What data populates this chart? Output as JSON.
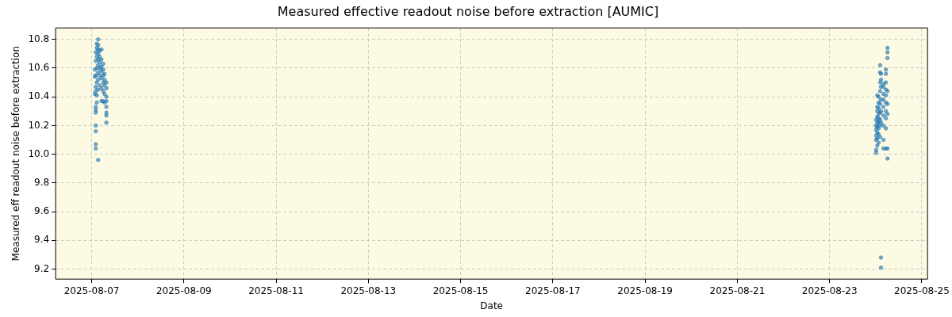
{
  "chart_data": {
    "type": "scatter",
    "title": "Measured effective readout noise before extraction [AUMIC]",
    "xlabel": "Date",
    "ylabel": "Measured eff readout noise before extraction",
    "x": [
      "2025-08-07T01:40",
      "2025-08-07T01:40",
      "2025-08-07T01:40",
      "2025-08-07T02:07",
      "2025-08-07T02:07",
      "2025-08-07T02:07",
      "2025-08-07T02:07",
      "2025-08-07T02:07",
      "2025-08-07T02:07",
      "2025-08-07T02:07",
      "2025-08-07T02:07",
      "2025-08-07T02:07",
      "2025-08-07T02:07",
      "2025-08-07T02:07",
      "2025-08-07T02:07",
      "2025-08-07T02:40",
      "2025-08-07T02:40",
      "2025-08-07T02:40",
      "2025-08-07T02:40",
      "2025-08-07T02:40",
      "2025-08-07T02:40",
      "2025-08-07T02:40",
      "2025-08-07T03:24",
      "2025-08-07T03:24",
      "2025-08-07T03:24",
      "2025-08-07T03:24",
      "2025-08-07T03:24",
      "2025-08-07T03:24",
      "2025-08-07T03:24",
      "2025-08-07T03:24",
      "2025-08-07T03:24",
      "2025-08-07T03:24",
      "2025-08-07T04:10",
      "2025-08-07T04:10",
      "2025-08-07T04:10",
      "2025-08-07T04:10",
      "2025-08-07T04:10",
      "2025-08-07T04:10",
      "2025-08-07T05:06",
      "2025-08-07T05:06",
      "2025-08-07T05:06",
      "2025-08-07T05:06",
      "2025-08-07T05:06",
      "2025-08-07T05:06",
      "2025-08-07T05:06",
      "2025-08-07T06:00",
      "2025-08-07T06:00",
      "2025-08-07T06:00",
      "2025-08-07T06:00",
      "2025-08-07T06:00",
      "2025-08-07T06:00",
      "2025-08-07T06:40",
      "2025-08-07T06:40",
      "2025-08-07T06:40",
      "2025-08-07T06:40",
      "2025-08-07T06:40",
      "2025-08-07T07:39",
      "2025-08-07T07:39",
      "2025-08-07T07:39",
      "2025-08-07T07:39",
      "2025-08-07T07:39",
      "2025-08-07T07:39",
      "2025-08-07T07:39",
      "2025-08-07T07:39",
      "2025-08-24T00:15",
      "2025-08-24T00:15",
      "2025-08-24T00:15",
      "2025-08-24T00:15",
      "2025-08-24T00:15",
      "2025-08-24T00:15",
      "2025-08-24T00:15",
      "2025-08-24T00:50",
      "2025-08-24T00:50",
      "2025-08-24T00:50",
      "2025-08-24T00:50",
      "2025-08-24T00:50",
      "2025-08-24T00:50",
      "2025-08-24T00:50",
      "2025-08-24T00:50",
      "2025-08-24T00:50",
      "2025-08-24T01:31",
      "2025-08-24T01:31",
      "2025-08-24T01:31",
      "2025-08-24T01:31",
      "2025-08-24T01:31",
      "2025-08-24T01:31",
      "2025-08-24T01:31",
      "2025-08-24T01:31",
      "2025-08-24T01:31",
      "2025-08-24T02:20",
      "2025-08-24T02:20",
      "2025-08-24T02:20",
      "2025-08-24T02:20",
      "2025-08-24T02:20",
      "2025-08-24T02:20",
      "2025-08-24T02:20",
      "2025-08-24T02:20",
      "2025-08-24T02:20",
      "2025-08-24T02:46",
      "2025-08-24T02:46",
      "2025-08-24T02:46",
      "2025-08-24T02:46",
      "2025-08-24T02:46",
      "2025-08-24T02:46",
      "2025-08-24T02:46",
      "2025-08-24T02:46",
      "2025-08-24T04:02",
      "2025-08-24T04:02",
      "2025-08-24T04:02",
      "2025-08-24T04:02",
      "2025-08-24T04:02",
      "2025-08-24T04:02",
      "2025-08-24T04:02",
      "2025-08-24T04:02",
      "2025-08-24T04:02",
      "2025-08-24T05:18",
      "2025-08-24T05:18",
      "2025-08-24T05:18",
      "2025-08-24T05:18",
      "2025-08-24T05:18",
      "2025-08-24T05:18",
      "2025-08-24T05:18",
      "2025-08-24T05:18",
      "2025-08-24T05:18",
      "2025-08-24T05:18",
      "2025-08-24T06:09",
      "2025-08-24T06:09",
      "2025-08-24T06:09",
      "2025-08-24T06:09",
      "2025-08-24T06:09",
      "2025-08-24T06:09",
      "2025-08-24T06:09",
      "2025-08-24T06:09"
    ],
    "values": [
      10.54,
      10.59,
      10.42,
      10.04,
      10.07,
      10.16,
      10.2,
      10.29,
      10.31,
      10.33,
      10.44,
      10.47,
      10.55,
      10.65,
      10.71,
      10.36,
      10.41,
      10.5,
      10.6,
      10.68,
      10.74,
      10.77,
      9.96,
      10.45,
      10.52,
      10.57,
      10.62,
      10.66,
      10.7,
      10.73,
      10.76,
      10.8,
      10.48,
      10.55,
      10.6,
      10.64,
      10.68,
      10.72,
      10.37,
      10.46,
      10.53,
      10.58,
      10.61,
      10.66,
      10.73,
      10.37,
      10.44,
      10.5,
      10.55,
      10.59,
      10.63,
      10.36,
      10.42,
      10.48,
      10.52,
      10.56,
      10.22,
      10.27,
      10.29,
      10.33,
      10.37,
      10.4,
      10.46,
      10.5,
      10.01,
      10.03,
      10.1,
      10.13,
      10.17,
      10.2,
      10.24,
      10.06,
      10.11,
      10.15,
      10.19,
      10.22,
      10.26,
      10.3,
      10.33,
      10.41,
      10.08,
      10.14,
      10.18,
      10.22,
      10.25,
      10.28,
      10.32,
      10.36,
      10.4,
      10.12,
      10.2,
      10.24,
      10.29,
      10.35,
      10.44,
      10.5,
      10.57,
      10.62,
      9.21,
      9.28,
      10.22,
      10.3,
      10.38,
      10.47,
      10.52,
      10.56,
      10.04,
      10.1,
      10.2,
      10.27,
      10.33,
      10.38,
      10.42,
      10.47,
      10.49,
      10.04,
      10.18,
      10.25,
      10.3,
      10.36,
      10.41,
      10.45,
      10.5,
      10.56,
      10.59,
      9.97,
      10.04,
      10.28,
      10.35,
      10.44,
      10.67,
      10.71,
      10.74
    ],
    "color": "#1f77b4",
    "marker": "circle",
    "grid": true,
    "xlim": [
      "2025-08-06T05:15",
      "2025-08-25T03:00"
    ],
    "xticks": [
      "2025-08-07",
      "2025-08-09",
      "2025-08-11",
      "2025-08-13",
      "2025-08-15",
      "2025-08-17",
      "2025-08-19",
      "2025-08-21",
      "2025-08-23",
      "2025-08-25"
    ],
    "ylim": [
      9.13,
      10.88
    ],
    "yticks": [
      9.2,
      9.4,
      9.6,
      9.8,
      {
        "value": 10,
        "label": "10.0"
      },
      10.2,
      10.4,
      10.6,
      10.8
    ]
  }
}
